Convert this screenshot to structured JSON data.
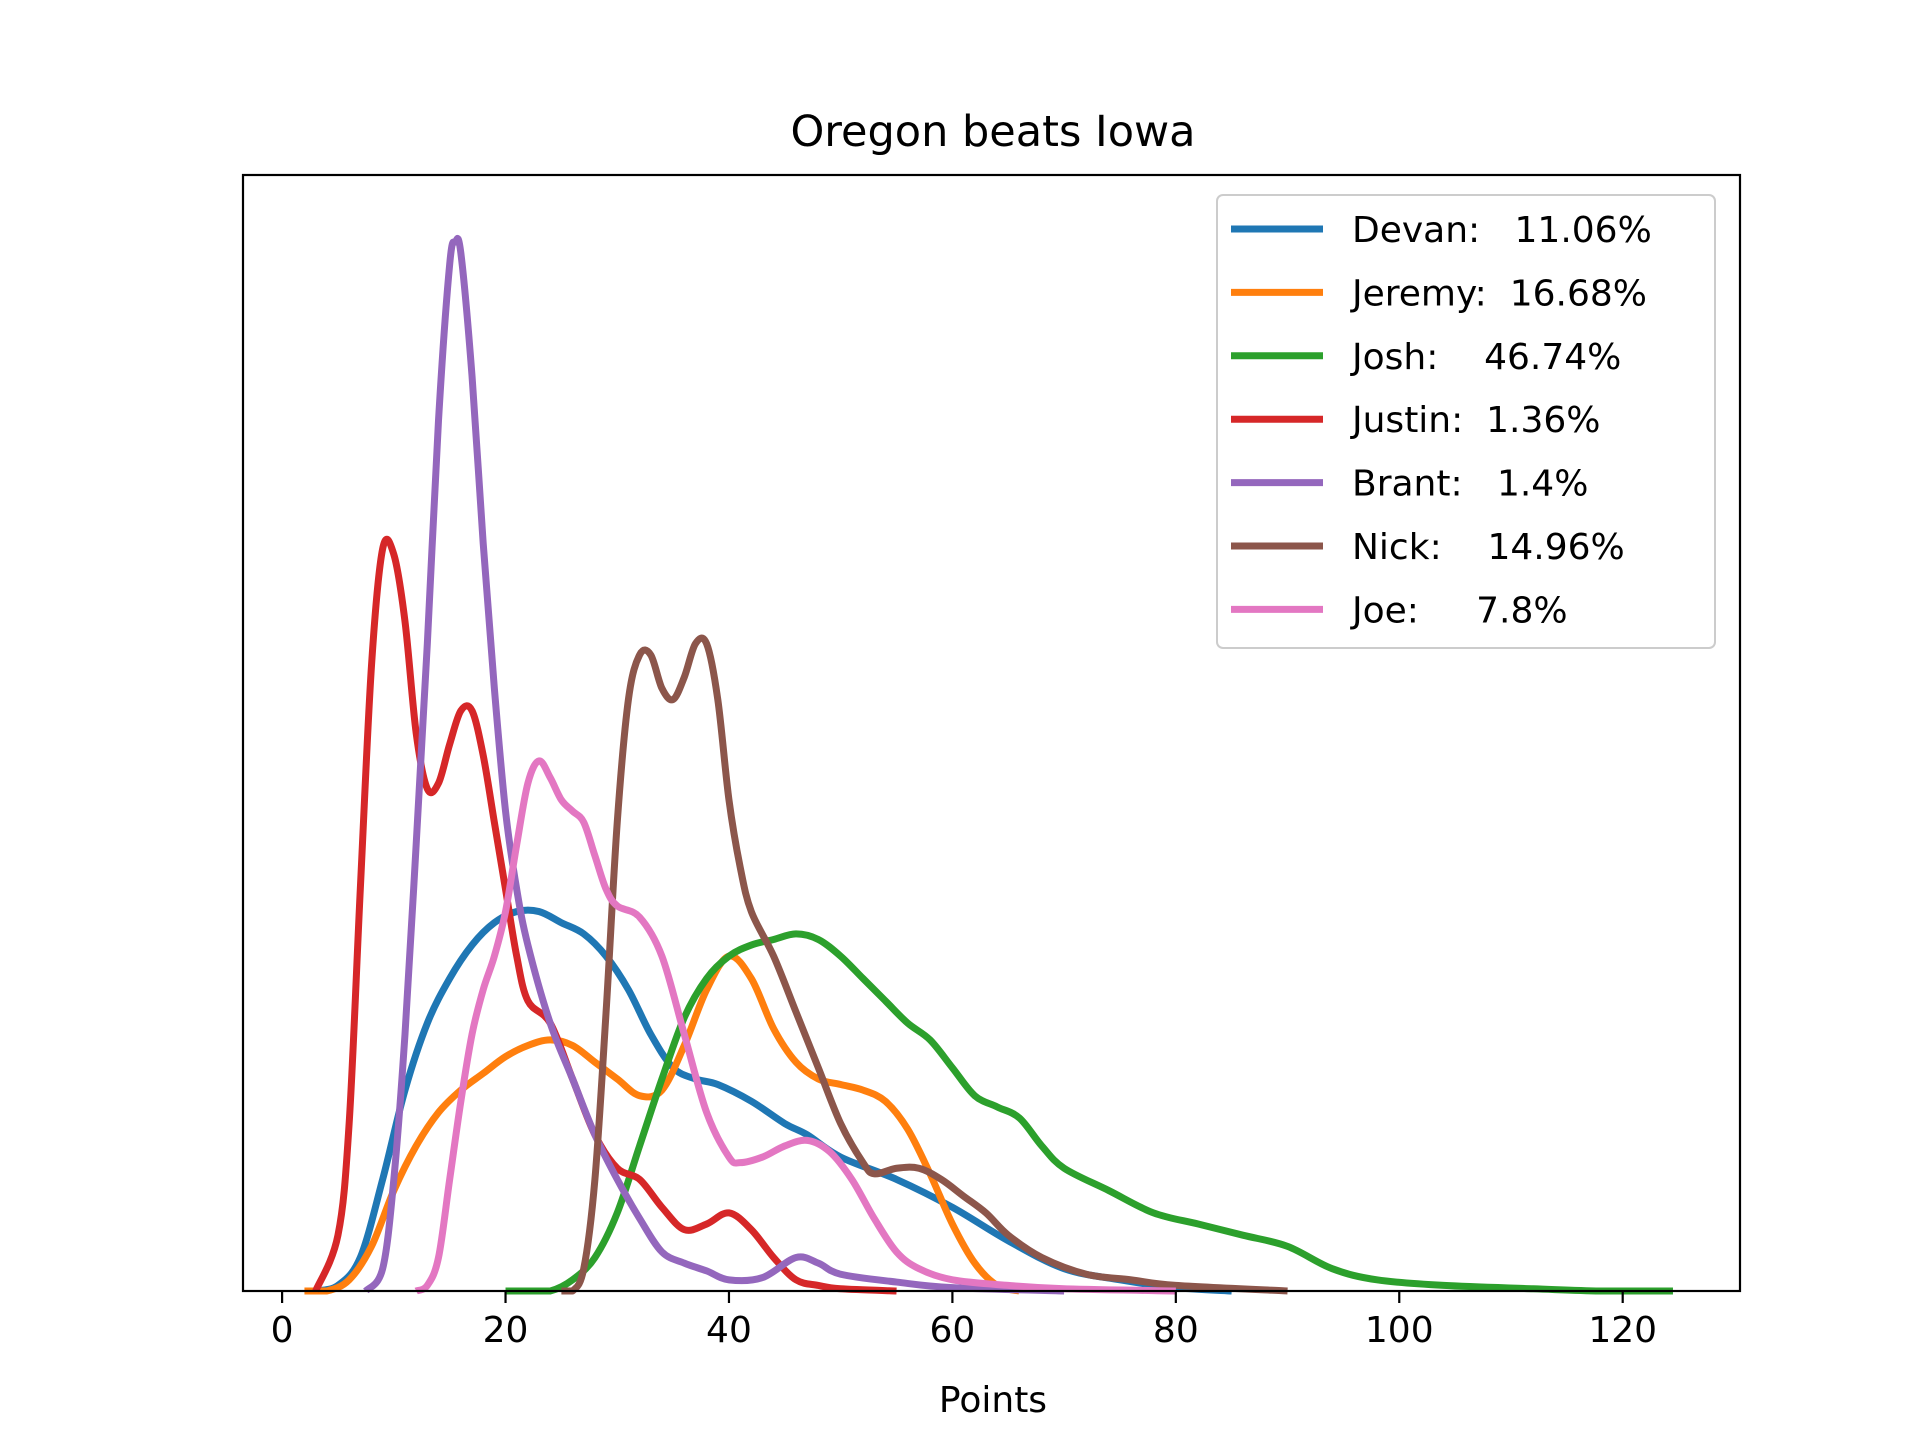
{
  "chart_data": {
    "type": "line",
    "title": "Oregon beats Iowa",
    "xlabel": "Points",
    "ylabel": "",
    "xlim": [
      -3.5,
      130.5
    ],
    "ylim": [
      0,
      1.0
    ],
    "xticks": [
      0,
      20,
      40,
      60,
      80,
      100,
      120
    ],
    "yticks_visible": false,
    "grid": false,
    "legend_position": "top-right",
    "series": [
      {
        "name": "Devan:   11.06%",
        "color": "#1f77b4",
        "points": [
          [
            3,
            0
          ],
          [
            5,
            0.005
          ],
          [
            7,
            0.03
          ],
          [
            9,
            0.1
          ],
          [
            11,
            0.18
          ],
          [
            13,
            0.24
          ],
          [
            15,
            0.28
          ],
          [
            17,
            0.31
          ],
          [
            19,
            0.33
          ],
          [
            21,
            0.34
          ],
          [
            23,
            0.34
          ],
          [
            25,
            0.33
          ],
          [
            27,
            0.32
          ],
          [
            29,
            0.3
          ],
          [
            31,
            0.27
          ],
          [
            33,
            0.23
          ],
          [
            35,
            0.2
          ],
          [
            37,
            0.19
          ],
          [
            39,
            0.185
          ],
          [
            42,
            0.17
          ],
          [
            45,
            0.15
          ],
          [
            47,
            0.14
          ],
          [
            50,
            0.12
          ],
          [
            55,
            0.1
          ],
          [
            60,
            0.075
          ],
          [
            65,
            0.045
          ],
          [
            70,
            0.02
          ],
          [
            75,
            0.01
          ],
          [
            80,
            0.003
          ],
          [
            85,
            0
          ]
        ]
      },
      {
        "name": "Jeremy:  16.68%",
        "color": "#ff7f0e",
        "points": [
          [
            2,
            0
          ],
          [
            4,
            0
          ],
          [
            6,
            0.01
          ],
          [
            8,
            0.04
          ],
          [
            10,
            0.09
          ],
          [
            12,
            0.13
          ],
          [
            14,
            0.16
          ],
          [
            16,
            0.18
          ],
          [
            18,
            0.195
          ],
          [
            20,
            0.21
          ],
          [
            22,
            0.22
          ],
          [
            24,
            0.225
          ],
          [
            26,
            0.22
          ],
          [
            28,
            0.205
          ],
          [
            30,
            0.19
          ],
          [
            32,
            0.175
          ],
          [
            34,
            0.18
          ],
          [
            36,
            0.22
          ],
          [
            38,
            0.27
          ],
          [
            40,
            0.3
          ],
          [
            42,
            0.28
          ],
          [
            44,
            0.235
          ],
          [
            46,
            0.205
          ],
          [
            48,
            0.19
          ],
          [
            50,
            0.185
          ],
          [
            52,
            0.18
          ],
          [
            54,
            0.17
          ],
          [
            56,
            0.145
          ],
          [
            58,
            0.105
          ],
          [
            60,
            0.06
          ],
          [
            62,
            0.025
          ],
          [
            64,
            0.005
          ],
          [
            66,
            0
          ]
        ]
      },
      {
        "name": "Josh:    46.74%",
        "color": "#2ca02c",
        "points": [
          [
            20,
            0
          ],
          [
            22,
            0
          ],
          [
            24,
            0
          ],
          [
            26,
            0.01
          ],
          [
            28,
            0.03
          ],
          [
            30,
            0.07
          ],
          [
            32,
            0.13
          ],
          [
            34,
            0.19
          ],
          [
            36,
            0.245
          ],
          [
            38,
            0.28
          ],
          [
            40,
            0.3
          ],
          [
            42,
            0.31
          ],
          [
            44,
            0.315
          ],
          [
            46,
            0.32
          ],
          [
            48,
            0.315
          ],
          [
            50,
            0.3
          ],
          [
            52,
            0.28
          ],
          [
            54,
            0.26
          ],
          [
            56,
            0.24
          ],
          [
            58,
            0.225
          ],
          [
            60,
            0.2
          ],
          [
            62,
            0.175
          ],
          [
            64,
            0.165
          ],
          [
            66,
            0.155
          ],
          [
            68,
            0.13
          ],
          [
            70,
            0.11
          ],
          [
            74,
            0.09
          ],
          [
            78,
            0.07
          ],
          [
            82,
            0.06
          ],
          [
            86,
            0.05
          ],
          [
            90,
            0.04
          ],
          [
            94,
            0.02
          ],
          [
            98,
            0.01
          ],
          [
            104,
            0.005
          ],
          [
            112,
            0.002
          ],
          [
            118,
            0
          ],
          [
            124.5,
            0
          ]
        ]
      },
      {
        "name": "Justin:  1.36%",
        "color": "#d62728",
        "points": [
          [
            3,
            0
          ],
          [
            5,
            0.05
          ],
          [
            6,
            0.15
          ],
          [
            7,
            0.36
          ],
          [
            8,
            0.56
          ],
          [
            9,
            0.665
          ],
          [
            10,
            0.66
          ],
          [
            11,
            0.6
          ],
          [
            12,
            0.5
          ],
          [
            13,
            0.45
          ],
          [
            14,
            0.455
          ],
          [
            15,
            0.49
          ],
          [
            16,
            0.52
          ],
          [
            17,
            0.52
          ],
          [
            18,
            0.48
          ],
          [
            19,
            0.42
          ],
          [
            20,
            0.36
          ],
          [
            21,
            0.3
          ],
          [
            22,
            0.26
          ],
          [
            24,
            0.24
          ],
          [
            26,
            0.19
          ],
          [
            28,
            0.14
          ],
          [
            30,
            0.11
          ],
          [
            32,
            0.1
          ],
          [
            34,
            0.075
          ],
          [
            36,
            0.055
          ],
          [
            38,
            0.06
          ],
          [
            40,
            0.07
          ],
          [
            42,
            0.055
          ],
          [
            44,
            0.03
          ],
          [
            46,
            0.01
          ],
          [
            48,
            0.005
          ],
          [
            50,
            0.002
          ],
          [
            55,
            0
          ]
        ]
      },
      {
        "name": "Brant:   1.4%",
        "color": "#9467bd",
        "points": [
          [
            7.5,
            0
          ],
          [
            9,
            0.02
          ],
          [
            10,
            0.1
          ],
          [
            11,
            0.23
          ],
          [
            12,
            0.4
          ],
          [
            13,
            0.58
          ],
          [
            14,
            0.78
          ],
          [
            15,
            0.92
          ],
          [
            15.5,
            0.94
          ],
          [
            16,
            0.93
          ],
          [
            17,
            0.82
          ],
          [
            18,
            0.67
          ],
          [
            19,
            0.54
          ],
          [
            20,
            0.43
          ],
          [
            21,
            0.36
          ],
          [
            22,
            0.31
          ],
          [
            24,
            0.24
          ],
          [
            26,
            0.19
          ],
          [
            28,
            0.14
          ],
          [
            30,
            0.1
          ],
          [
            32,
            0.065
          ],
          [
            34,
            0.035
          ],
          [
            36,
            0.025
          ],
          [
            38,
            0.018
          ],
          [
            40,
            0.01
          ],
          [
            43,
            0.012
          ],
          [
            46,
            0.03
          ],
          [
            48,
            0.025
          ],
          [
            50,
            0.015
          ],
          [
            55,
            0.008
          ],
          [
            60,
            0.003
          ],
          [
            70,
            0
          ]
        ]
      },
      {
        "name": "Nick:    14.96%",
        "color": "#8c564b",
        "points": [
          [
            25,
            0
          ],
          [
            26,
            0
          ],
          [
            27,
            0.02
          ],
          [
            28,
            0.1
          ],
          [
            29,
            0.25
          ],
          [
            30,
            0.42
          ],
          [
            31,
            0.53
          ],
          [
            32,
            0.57
          ],
          [
            33,
            0.57
          ],
          [
            34,
            0.54
          ],
          [
            35,
            0.53
          ],
          [
            36,
            0.55
          ],
          [
            37,
            0.58
          ],
          [
            38,
            0.58
          ],
          [
            39,
            0.53
          ],
          [
            40,
            0.44
          ],
          [
            41,
            0.38
          ],
          [
            42,
            0.34
          ],
          [
            44,
            0.3
          ],
          [
            46,
            0.25
          ],
          [
            48,
            0.2
          ],
          [
            50,
            0.15
          ],
          [
            52,
            0.115
          ],
          [
            53,
            0.105
          ],
          [
            55,
            0.11
          ],
          [
            57,
            0.11
          ],
          [
            59,
            0.1
          ],
          [
            61,
            0.085
          ],
          [
            63,
            0.07
          ],
          [
            65,
            0.05
          ],
          [
            68,
            0.03
          ],
          [
            72,
            0.015
          ],
          [
            76,
            0.01
          ],
          [
            80,
            0.005
          ],
          [
            90,
            0
          ]
        ]
      },
      {
        "name": "Joe:     7.8%",
        "color": "#e377c2",
        "points": [
          [
            12,
            0
          ],
          [
            13,
            0.005
          ],
          [
            14,
            0.03
          ],
          [
            15,
            0.1
          ],
          [
            16,
            0.17
          ],
          [
            17,
            0.23
          ],
          [
            18,
            0.27
          ],
          [
            19,
            0.3
          ],
          [
            20,
            0.34
          ],
          [
            21,
            0.4
          ],
          [
            22,
            0.455
          ],
          [
            23,
            0.475
          ],
          [
            24,
            0.46
          ],
          [
            25,
            0.44
          ],
          [
            26,
            0.43
          ],
          [
            27,
            0.42
          ],
          [
            28,
            0.39
          ],
          [
            29,
            0.36
          ],
          [
            30,
            0.345
          ],
          [
            32,
            0.335
          ],
          [
            34,
            0.3
          ],
          [
            36,
            0.23
          ],
          [
            38,
            0.16
          ],
          [
            40,
            0.12
          ],
          [
            41,
            0.115
          ],
          [
            43,
            0.12
          ],
          [
            45,
            0.13
          ],
          [
            47,
            0.135
          ],
          [
            49,
            0.125
          ],
          [
            51,
            0.1
          ],
          [
            53,
            0.065
          ],
          [
            55,
            0.035
          ],
          [
            57,
            0.02
          ],
          [
            60,
            0.01
          ],
          [
            65,
            0.005
          ],
          [
            70,
            0.002
          ],
          [
            80,
            0
          ]
        ]
      }
    ]
  }
}
